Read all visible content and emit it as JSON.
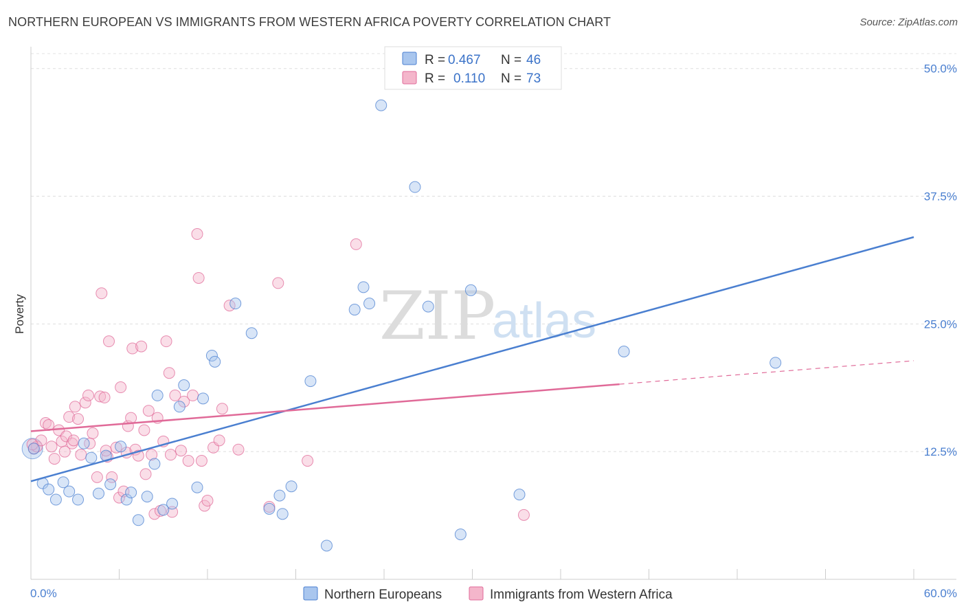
{
  "title": "NORTHERN EUROPEAN VS IMMIGRANTS FROM WESTERN AFRICA POVERTY CORRELATION CHART",
  "source": "Source: ZipAtlas.com",
  "watermark": {
    "zip": "ZIP",
    "atlas": "atlas"
  },
  "colors": {
    "blue": "#4a7fd0",
    "blue_fill": "#a9c6ee",
    "pink": "#e06a98",
    "pink_fill": "#f4b6cb",
    "grid": "#dddddd"
  },
  "chart_data": {
    "type": "scatter",
    "title": "NORTHERN EUROPEAN VS IMMIGRANTS FROM WESTERN AFRICA POVERTY CORRELATION CHART",
    "xlabel": "",
    "ylabel": "Poverty",
    "xlim": [
      0,
      60
    ],
    "ylim": [
      0,
      52
    ],
    "x_tick_labels": [
      "0.0%",
      "60.0%"
    ],
    "y_ticks": [
      12.5,
      25.0,
      37.5,
      50.0
    ],
    "y_tick_labels": [
      "12.5%",
      "25.0%",
      "37.5%",
      "50.0%"
    ],
    "grid": "horizontal dashed",
    "legend": {
      "placement": "top-center",
      "entries": [
        {
          "r_label": "R =",
          "r": "0.467",
          "n_label": "N =",
          "n": "46"
        },
        {
          "r_label": "R =",
          "r": "0.110",
          "n_label": "N =",
          "n": "73"
        }
      ]
    },
    "series": [
      {
        "name": "Northern Europeans",
        "color": "#4a7fd0",
        "trend": {
          "x": [
            0,
            60
          ],
          "y": [
            9.6,
            33.5
          ],
          "dashed_from": null
        },
        "points": [
          [
            0.2,
            12.8
          ],
          [
            0.8,
            9.4
          ],
          [
            1.2,
            8.8
          ],
          [
            1.7,
            7.8
          ],
          [
            2.2,
            9.5
          ],
          [
            2.6,
            8.6
          ],
          [
            3.2,
            7.8
          ],
          [
            3.6,
            13.3
          ],
          [
            4.1,
            11.9
          ],
          [
            4.6,
            8.4
          ],
          [
            5.1,
            12.1
          ],
          [
            5.4,
            9.3
          ],
          [
            6.1,
            13.0
          ],
          [
            6.5,
            7.8
          ],
          [
            6.8,
            8.5
          ],
          [
            7.3,
            5.8
          ],
          [
            7.9,
            8.1
          ],
          [
            8.4,
            11.3
          ],
          [
            8.6,
            18.0
          ],
          [
            9.0,
            6.8
          ],
          [
            9.6,
            7.4
          ],
          [
            10.1,
            16.9
          ],
          [
            10.4,
            19.0
          ],
          [
            11.3,
            9.0
          ],
          [
            11.7,
            17.7
          ],
          [
            12.3,
            21.9
          ],
          [
            12.5,
            21.3
          ],
          [
            13.9,
            27.0
          ],
          [
            15.0,
            24.1
          ],
          [
            16.2,
            6.9
          ],
          [
            16.9,
            8.2
          ],
          [
            17.1,
            6.4
          ],
          [
            17.7,
            9.1
          ],
          [
            19.0,
            19.4
          ],
          [
            20.1,
            3.3
          ],
          [
            22.0,
            26.4
          ],
          [
            22.6,
            28.6
          ],
          [
            23.0,
            27.0
          ],
          [
            23.8,
            46.4
          ],
          [
            26.1,
            38.4
          ],
          [
            27.0,
            26.7
          ],
          [
            29.2,
            4.4
          ],
          [
            29.9,
            28.3
          ],
          [
            33.2,
            8.3
          ],
          [
            40.3,
            22.3
          ],
          [
            50.6,
            21.2
          ]
        ]
      },
      {
        "name": "Immigrants from Western Africa",
        "color": "#e06a98",
        "trend": {
          "x": [
            0,
            60
          ],
          "y": [
            14.5,
            21.4
          ],
          "dashed_from": 40.0
        },
        "points": [
          [
            0.2,
            12.8
          ],
          [
            0.4,
            13.0
          ],
          [
            0.7,
            13.6
          ],
          [
            1.0,
            15.3
          ],
          [
            1.2,
            15.1
          ],
          [
            1.4,
            13.0
          ],
          [
            1.6,
            11.8
          ],
          [
            1.9,
            14.6
          ],
          [
            2.1,
            13.5
          ],
          [
            2.3,
            12.5
          ],
          [
            2.4,
            14.0
          ],
          [
            2.6,
            15.9
          ],
          [
            2.8,
            13.3
          ],
          [
            3.0,
            16.9
          ],
          [
            3.2,
            15.7
          ],
          [
            3.4,
            12.2
          ],
          [
            3.7,
            17.3
          ],
          [
            3.9,
            18.0
          ],
          [
            4.0,
            13.3
          ],
          [
            4.2,
            14.3
          ],
          [
            4.5,
            10.0
          ],
          [
            4.7,
            17.9
          ],
          [
            4.8,
            28.0
          ],
          [
            5.0,
            17.8
          ],
          [
            5.2,
            12.0
          ],
          [
            5.3,
            23.3
          ],
          [
            5.5,
            10.0
          ],
          [
            5.8,
            12.9
          ],
          [
            6.0,
            8.0
          ],
          [
            6.1,
            18.8
          ],
          [
            6.3,
            8.6
          ],
          [
            6.5,
            12.4
          ],
          [
            6.6,
            15.0
          ],
          [
            6.8,
            15.8
          ],
          [
            6.9,
            22.6
          ],
          [
            7.1,
            12.7
          ],
          [
            7.3,
            12.1
          ],
          [
            7.5,
            22.8
          ],
          [
            7.7,
            14.6
          ],
          [
            7.8,
            10.3
          ],
          [
            8.0,
            16.5
          ],
          [
            8.2,
            12.2
          ],
          [
            8.4,
            6.4
          ],
          [
            8.6,
            15.8
          ],
          [
            8.8,
            6.7
          ],
          [
            9.0,
            13.5
          ],
          [
            9.2,
            23.3
          ],
          [
            9.4,
            20.2
          ],
          [
            9.5,
            12.2
          ],
          [
            9.6,
            6.6
          ],
          [
            9.8,
            18.0
          ],
          [
            10.2,
            12.6
          ],
          [
            10.4,
            17.4
          ],
          [
            10.7,
            11.6
          ],
          [
            11.0,
            18.0
          ],
          [
            11.3,
            33.8
          ],
          [
            11.4,
            29.5
          ],
          [
            11.6,
            11.6
          ],
          [
            11.8,
            7.2
          ],
          [
            12.0,
            7.7
          ],
          [
            12.4,
            12.9
          ],
          [
            12.8,
            13.6
          ],
          [
            13.0,
            16.7
          ],
          [
            13.5,
            26.8
          ],
          [
            14.1,
            12.7
          ],
          [
            16.2,
            7.1
          ],
          [
            16.8,
            29.0
          ],
          [
            18.8,
            11.6
          ],
          [
            22.1,
            32.8
          ],
          [
            33.5,
            6.3
          ],
          [
            0.1,
            13.2
          ],
          [
            2.9,
            13.6
          ],
          [
            5.1,
            12.6
          ]
        ]
      }
    ]
  }
}
